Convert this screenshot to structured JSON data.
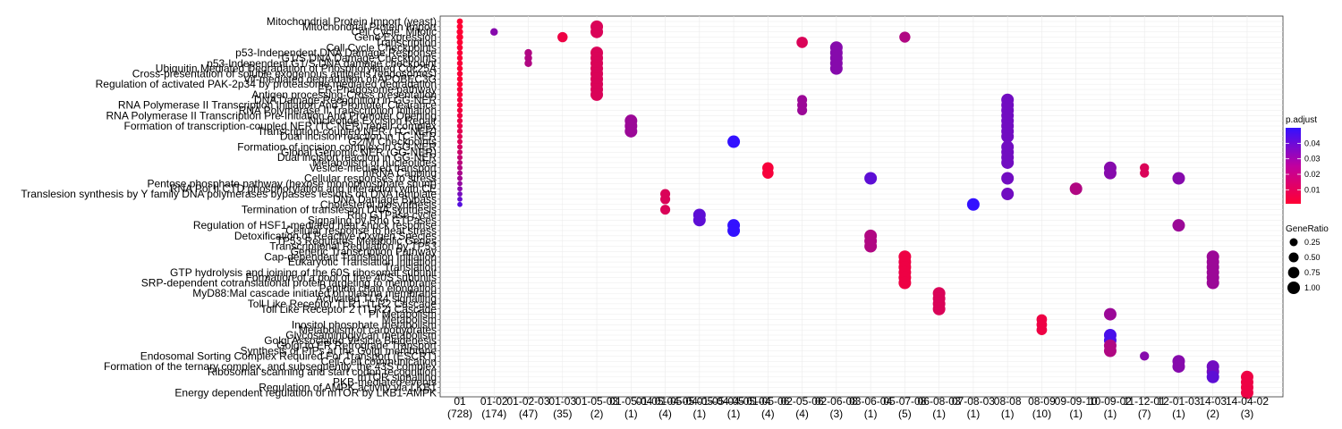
{
  "chart_data": {
    "type": "scatter",
    "title": "",
    "xlabel": "",
    "ylabel": "",
    "grid": true,
    "legend_position": "right",
    "x_categories": [
      {
        "label": "01",
        "count": "(728)"
      },
      {
        "label": "01-02",
        "count": "(174)"
      },
      {
        "label": "01-02-03",
        "count": "(47)"
      },
      {
        "label": "01-03",
        "count": "(35)"
      },
      {
        "label": "01-05-03",
        "count": "(2)"
      },
      {
        "label": "01-05-04",
        "count": "(1)"
      },
      {
        "label": "01-05-04-05",
        "count": "(4)"
      },
      {
        "label": "01-05-04-05-04-05",
        "count": "(1)"
      },
      {
        "label": "01-05-04-05-04",
        "count": "(1)"
      },
      {
        "label": "01-05-06",
        "count": "(4)"
      },
      {
        "label": "02-05-06",
        "count": "(4)"
      },
      {
        "label": "02-06-08",
        "count": "(3)"
      },
      {
        "label": "03-06-04",
        "count": "(1)"
      },
      {
        "label": "05-07-08",
        "count": "(5)"
      },
      {
        "label": "06-08-03",
        "count": "(1)"
      },
      {
        "label": "07-08-03",
        "count": "(1)"
      },
      {
        "label": "08-08",
        "count": "(1)"
      },
      {
        "label": "08-09",
        "count": "(10)"
      },
      {
        "label": "09-09-10",
        "count": "(1)"
      },
      {
        "label": "10-09-02",
        "count": "(1)"
      },
      {
        "label": "11-12-01",
        "count": "(7)"
      },
      {
        "label": "12-01-03",
        "count": "(1)"
      },
      {
        "label": "14-03",
        "count": "(2)"
      },
      {
        "label": "14-04-02",
        "count": "(3)"
      }
    ],
    "y_terms": [
      "Mitochondrial Protein Import (yeast)",
      "Mitochondrial Protein Import",
      "Cell Cycle, Mitotic",
      "Gene Expression",
      "Transcription",
      "Cell Cycle Checkpoints",
      "p53-Independent DNA Damage Response",
      "G1/S DNA Damage Checkpoints",
      "p53-Independent G1/S DNA damage checkpoint",
      "Ubiquitin Mediated Degradation of Phosphorylated Cdc25A",
      "Cross-presentation of soluble exogenous antigens (endosomes)",
      "Vif-mediated degradation of APOBEC3G",
      "Regulation of activated PAK-2p34 by proteasome mediated degradation",
      "ER-Phagosome pathway",
      "Antigen processing-Cross presentation",
      "DNA Damage Recognition in GG-NER",
      "RNA Polymerase II Transcription Initiation And Promoter Clearance",
      "RNA Polymerase II Transcription Initiation",
      "RNA Polymerase II Transcription Pre-Initiation And Promoter Opening",
      "Nucleotide Excision Repair",
      "Formation of transcription-coupled NER (TC-NER) repair complex",
      "Transcription-coupled NER (TC-NER)",
      "Dual incision reaction in TC-NER",
      "G2/M Checkpoints",
      "Formation of incision complex in GG-NER",
      "Global Genomic NER (GG-NER)",
      "Dual incision reaction in GG-NER",
      "Metabolism of nucleotides",
      "Vesicle-mediated transport",
      "mRNA Capping",
      "Cellular responses to stress",
      "Pentose phosphate pathway (hexose monophosphate shunt)",
      "RNA Pol II CTD phosphorylation and interaction with CE",
      "Translesion synthesis by Y family DNA polymerases bypasses lesions on DNA template",
      "DNA Damage Bypass",
      "Cholesterol biosynthesis",
      "Termination of translesion DNA synthesis",
      "Rho GTPase cycle",
      "Signaling by Rho GTPases",
      "Regulation of HSF1-mediated heat shock response",
      "Cellular response to heat stress",
      "Detoxification of Reactive Oxygen Species",
      "TP53 Regulates Metabolic Genes",
      "Transcriptional Regulation by TP53",
      "Generic Transcription Pathway",
      "Cap-dependent Translation Initiation",
      "Eukaryotic Translation Initiation",
      "Translation",
      "GTP hydrolysis and joining of the 60S ribosomal subunit",
      "Formation of a pool of free 40S subunits",
      "SRP-dependent cotranslational protein targeting to membrane",
      "Peptide chain elongation",
      "MyD88:Mal cascade initiated on plasma membrane",
      "Activated TLR4 signalling",
      "Toll Like Receptor TLR1:TLR2 Cascade",
      "Toll Like Receptor 2 (TLR2) Cascade",
      "PI Metabolism",
      "Metabolism",
      "Inositol phosphate metabolism",
      "Metabolism of carbohydrates",
      "Glycosaminoglycan metabolism",
      "Golgi Associated Vesicle Biogenesis",
      "Golgi to ER Retrograde Transport",
      "Synthesis of PIPs at the Golgi membrane",
      "Endosomal Sorting Complex Required For Transport (ESCRT)",
      "Cell-Cell communication",
      "Formation of the ternary complex, and subsequently, the 43S complex",
      "Ribosomal scanning and start codon recognition",
      "mTOR signalling",
      "PKB-mediated events",
      "Regulation of AMPK activity via LKB1",
      "Energy dependent regulation of mTOR by LKB1-AMPK"
    ],
    "points": [
      {
        "x": 0,
        "y": 0,
        "ratio": 0.08,
        "p": 0.001
      },
      {
        "x": 0,
        "y": 1,
        "ratio": 0.08,
        "p": 0.001
      },
      {
        "x": 0,
        "y": 2,
        "ratio": 0.1,
        "p": 0.001
      },
      {
        "x": 0,
        "y": 3,
        "ratio": 0.12,
        "p": 0.001
      },
      {
        "x": 0,
        "y": 4,
        "ratio": 0.08,
        "p": 0.001
      },
      {
        "x": 0,
        "y": 5,
        "ratio": 0.07,
        "p": 0.002
      },
      {
        "x": 0,
        "y": 6,
        "ratio": 0.06,
        "p": 0.002
      },
      {
        "x": 0,
        "y": 7,
        "ratio": 0.06,
        "p": 0.002
      },
      {
        "x": 0,
        "y": 8,
        "ratio": 0.06,
        "p": 0.002
      },
      {
        "x": 0,
        "y": 9,
        "ratio": 0.06,
        "p": 0.002
      },
      {
        "x": 0,
        "y": 10,
        "ratio": 0.06,
        "p": 0.002
      },
      {
        "x": 0,
        "y": 11,
        "ratio": 0.06,
        "p": 0.002
      },
      {
        "x": 0,
        "y": 12,
        "ratio": 0.06,
        "p": 0.002
      },
      {
        "x": 0,
        "y": 13,
        "ratio": 0.06,
        "p": 0.003
      },
      {
        "x": 0,
        "y": 14,
        "ratio": 0.06,
        "p": 0.003
      },
      {
        "x": 0,
        "y": 15,
        "ratio": 0.05,
        "p": 0.004
      },
      {
        "x": 0,
        "y": 16,
        "ratio": 0.05,
        "p": 0.004
      },
      {
        "x": 0,
        "y": 17,
        "ratio": 0.05,
        "p": 0.004
      },
      {
        "x": 0,
        "y": 18,
        "ratio": 0.05,
        "p": 0.005
      },
      {
        "x": 0,
        "y": 19,
        "ratio": 0.05,
        "p": 0.006
      },
      {
        "x": 0,
        "y": 20,
        "ratio": 0.05,
        "p": 0.007
      },
      {
        "x": 0,
        "y": 21,
        "ratio": 0.05,
        "p": 0.008
      },
      {
        "x": 0,
        "y": 22,
        "ratio": 0.04,
        "p": 0.009
      },
      {
        "x": 0,
        "y": 23,
        "ratio": 0.04,
        "p": 0.01
      },
      {
        "x": 0,
        "y": 24,
        "ratio": 0.04,
        "p": 0.012
      },
      {
        "x": 0,
        "y": 25,
        "ratio": 0.04,
        "p": 0.014
      },
      {
        "x": 0,
        "y": 26,
        "ratio": 0.04,
        "p": 0.016
      },
      {
        "x": 0,
        "y": 27,
        "ratio": 0.04,
        "p": 0.018
      },
      {
        "x": 0,
        "y": 28,
        "ratio": 0.04,
        "p": 0.02
      },
      {
        "x": 0,
        "y": 29,
        "ratio": 0.04,
        "p": 0.022
      },
      {
        "x": 0,
        "y": 30,
        "ratio": 0.04,
        "p": 0.024
      },
      {
        "x": 0,
        "y": 31,
        "ratio": 0.03,
        "p": 0.027
      },
      {
        "x": 0,
        "y": 32,
        "ratio": 0.03,
        "p": 0.03
      },
      {
        "x": 0,
        "y": 33,
        "ratio": 0.03,
        "p": 0.034
      },
      {
        "x": 0,
        "y": 34,
        "ratio": 0.03,
        "p": 0.038
      },
      {
        "x": 0,
        "y": 35,
        "ratio": 0.03,
        "p": 0.042
      },
      {
        "x": 1,
        "y": 2,
        "ratio": 0.2,
        "p": 0.03
      },
      {
        "x": 2,
        "y": 6,
        "ratio": 0.2,
        "p": 0.02
      },
      {
        "x": 2,
        "y": 7,
        "ratio": 0.2,
        "p": 0.02
      },
      {
        "x": 2,
        "y": 8,
        "ratio": 0.2,
        "p": 0.02
      },
      {
        "x": 3,
        "y": 3,
        "ratio": 0.55,
        "p": 0.005
      },
      {
        "x": 4,
        "y": 1,
        "ratio": 1.0,
        "p": 0.01
      },
      {
        "x": 4,
        "y": 2,
        "ratio": 1.0,
        "p": 0.01
      },
      {
        "x": 4,
        "y": 6,
        "ratio": 1.0,
        "p": 0.01
      },
      {
        "x": 4,
        "y": 7,
        "ratio": 1.0,
        "p": 0.01
      },
      {
        "x": 4,
        "y": 8,
        "ratio": 1.0,
        "p": 0.01
      },
      {
        "x": 4,
        "y": 9,
        "ratio": 1.0,
        "p": 0.01
      },
      {
        "x": 4,
        "y": 10,
        "ratio": 1.0,
        "p": 0.01
      },
      {
        "x": 4,
        "y": 11,
        "ratio": 1.0,
        "p": 0.01
      },
      {
        "x": 4,
        "y": 12,
        "ratio": 1.0,
        "p": 0.01
      },
      {
        "x": 4,
        "y": 13,
        "ratio": 1.0,
        "p": 0.01
      },
      {
        "x": 4,
        "y": 14,
        "ratio": 1.0,
        "p": 0.01
      },
      {
        "x": 5,
        "y": 19,
        "ratio": 1.0,
        "p": 0.025
      },
      {
        "x": 5,
        "y": 20,
        "ratio": 1.0,
        "p": 0.025
      },
      {
        "x": 5,
        "y": 21,
        "ratio": 1.0,
        "p": 0.025
      },
      {
        "x": 6,
        "y": 33,
        "ratio": 0.5,
        "p": 0.01
      },
      {
        "x": 6,
        "y": 34,
        "ratio": 0.5,
        "p": 0.01
      },
      {
        "x": 6,
        "y": 36,
        "ratio": 0.5,
        "p": 0.01
      },
      {
        "x": 7,
        "y": 37,
        "ratio": 1.0,
        "p": 0.04
      },
      {
        "x": 7,
        "y": 38,
        "ratio": 1.0,
        "p": 0.04
      },
      {
        "x": 8,
        "y": 23,
        "ratio": 1.0,
        "p": 0.05
      },
      {
        "x": 8,
        "y": 39,
        "ratio": 1.0,
        "p": 0.05
      },
      {
        "x": 8,
        "y": 40,
        "ratio": 1.0,
        "p": 0.05
      },
      {
        "x": 9,
        "y": 28,
        "ratio": 0.75,
        "p": 0.003
      },
      {
        "x": 9,
        "y": 29,
        "ratio": 0.75,
        "p": 0.003
      },
      {
        "x": 10,
        "y": 4,
        "ratio": 0.75,
        "p": 0.01
      },
      {
        "x": 10,
        "y": 15,
        "ratio": 0.5,
        "p": 0.025
      },
      {
        "x": 10,
        "y": 16,
        "ratio": 0.5,
        "p": 0.025
      },
      {
        "x": 10,
        "y": 17,
        "ratio": 0.5,
        "p": 0.025
      },
      {
        "x": 11,
        "y": 5,
        "ratio": 1.0,
        "p": 0.03
      },
      {
        "x": 11,
        "y": 6,
        "ratio": 1.0,
        "p": 0.03
      },
      {
        "x": 11,
        "y": 7,
        "ratio": 1.0,
        "p": 0.03
      },
      {
        "x": 11,
        "y": 8,
        "ratio": 1.0,
        "p": 0.03
      },
      {
        "x": 11,
        "y": 9,
        "ratio": 1.0,
        "p": 0.03
      },
      {
        "x": 12,
        "y": 30,
        "ratio": 1.0,
        "p": 0.04
      },
      {
        "x": 12,
        "y": 41,
        "ratio": 1.0,
        "p": 0.02
      },
      {
        "x": 12,
        "y": 42,
        "ratio": 1.0,
        "p": 0.02
      },
      {
        "x": 12,
        "y": 43,
        "ratio": 1.0,
        "p": 0.02
      },
      {
        "x": 13,
        "y": 3,
        "ratio": 0.7,
        "p": 0.02
      },
      {
        "x": 13,
        "y": 45,
        "ratio": 1.0,
        "p": 0.005
      },
      {
        "x": 13,
        "y": 46,
        "ratio": 1.0,
        "p": 0.005
      },
      {
        "x": 13,
        "y": 47,
        "ratio": 1.0,
        "p": 0.005
      },
      {
        "x": 13,
        "y": 48,
        "ratio": 1.0,
        "p": 0.005
      },
      {
        "x": 13,
        "y": 49,
        "ratio": 1.0,
        "p": 0.005
      },
      {
        "x": 13,
        "y": 50,
        "ratio": 1.0,
        "p": 0.005
      },
      {
        "x": 14,
        "y": 52,
        "ratio": 1.0,
        "p": 0.01
      },
      {
        "x": 14,
        "y": 53,
        "ratio": 1.0,
        "p": 0.01
      },
      {
        "x": 14,
        "y": 54,
        "ratio": 1.0,
        "p": 0.01
      },
      {
        "x": 14,
        "y": 55,
        "ratio": 1.0,
        "p": 0.01
      },
      {
        "x": 15,
        "y": 35,
        "ratio": 1.0,
        "p": 0.05
      },
      {
        "x": 16,
        "y": 15,
        "ratio": 1.0,
        "p": 0.035
      },
      {
        "x": 16,
        "y": 16,
        "ratio": 1.0,
        "p": 0.035
      },
      {
        "x": 16,
        "y": 17,
        "ratio": 1.0,
        "p": 0.035
      },
      {
        "x": 16,
        "y": 18,
        "ratio": 1.0,
        "p": 0.035
      },
      {
        "x": 16,
        "y": 19,
        "ratio": 1.0,
        "p": 0.035
      },
      {
        "x": 16,
        "y": 20,
        "ratio": 1.0,
        "p": 0.035
      },
      {
        "x": 16,
        "y": 21,
        "ratio": 1.0,
        "p": 0.035
      },
      {
        "x": 16,
        "y": 22,
        "ratio": 1.0,
        "p": 0.035
      },
      {
        "x": 16,
        "y": 24,
        "ratio": 1.0,
        "p": 0.035
      },
      {
        "x": 16,
        "y": 25,
        "ratio": 1.0,
        "p": 0.035
      },
      {
        "x": 16,
        "y": 26,
        "ratio": 1.0,
        "p": 0.035
      },
      {
        "x": 16,
        "y": 27,
        "ratio": 1.0,
        "p": 0.035
      },
      {
        "x": 16,
        "y": 30,
        "ratio": 1.0,
        "p": 0.035
      },
      {
        "x": 16,
        "y": 33,
        "ratio": 1.0,
        "p": 0.035
      },
      {
        "x": 17,
        "y": 57,
        "ratio": 0.6,
        "p": 0.005
      },
      {
        "x": 17,
        "y": 58,
        "ratio": 0.6,
        "p": 0.005
      },
      {
        "x": 17,
        "y": 59,
        "ratio": 0.6,
        "p": 0.005
      },
      {
        "x": 18,
        "y": 32,
        "ratio": 1.0,
        "p": 0.02
      },
      {
        "x": 19,
        "y": 28,
        "ratio": 1.0,
        "p": 0.03
      },
      {
        "x": 19,
        "y": 29,
        "ratio": 1.0,
        "p": 0.03
      },
      {
        "x": 19,
        "y": 56,
        "ratio": 1.0,
        "p": 0.025
      },
      {
        "x": 19,
        "y": 60,
        "ratio": 1.0,
        "p": 0.045
      },
      {
        "x": 19,
        "y": 61,
        "ratio": 1.0,
        "p": 0.045
      },
      {
        "x": 19,
        "y": 62,
        "ratio": 1.0,
        "p": 0.02
      },
      {
        "x": 19,
        "y": 63,
        "ratio": 1.0,
        "p": 0.02
      },
      {
        "x": 20,
        "y": 28,
        "ratio": 0.4,
        "p": 0.01
      },
      {
        "x": 20,
        "y": 29,
        "ratio": 0.4,
        "p": 0.01
      },
      {
        "x": 20,
        "y": 64,
        "ratio": 0.4,
        "p": 0.03
      },
      {
        "x": 21,
        "y": 30,
        "ratio": 1.0,
        "p": 0.03
      },
      {
        "x": 21,
        "y": 39,
        "ratio": 1.0,
        "p": 0.025
      },
      {
        "x": 21,
        "y": 65,
        "ratio": 1.0,
        "p": 0.03
      },
      {
        "x": 21,
        "y": 66,
        "ratio": 1.0,
        "p": 0.03
      },
      {
        "x": 22,
        "y": 45,
        "ratio": 1.0,
        "p": 0.025
      },
      {
        "x": 22,
        "y": 46,
        "ratio": 1.0,
        "p": 0.025
      },
      {
        "x": 22,
        "y": 47,
        "ratio": 1.0,
        "p": 0.025
      },
      {
        "x": 22,
        "y": 48,
        "ratio": 1.0,
        "p": 0.025
      },
      {
        "x": 22,
        "y": 49,
        "ratio": 1.0,
        "p": 0.025
      },
      {
        "x": 22,
        "y": 50,
        "ratio": 1.0,
        "p": 0.025
      },
      {
        "x": 22,
        "y": 66,
        "ratio": 1.0,
        "p": 0.035
      },
      {
        "x": 22,
        "y": 67,
        "ratio": 1.0,
        "p": 0.035
      },
      {
        "x": 22,
        "y": 68,
        "ratio": 1.0,
        "p": 0.04
      },
      {
        "x": 23,
        "y": 68,
        "ratio": 1.0,
        "p": 0.005
      },
      {
        "x": 23,
        "y": 69,
        "ratio": 1.0,
        "p": 0.005
      },
      {
        "x": 23,
        "y": 70,
        "ratio": 1.0,
        "p": 0.005
      },
      {
        "x": 23,
        "y": 71,
        "ratio": 1.0,
        "p": 0.005
      }
    ],
    "color_legend": {
      "title": "p.adjust",
      "ticks": [
        0.04,
        0.03,
        0.02,
        0.01
      ],
      "range": [
        0.001,
        0.05
      ],
      "low_color": "#ff0033",
      "high_color": "#3311ff"
    },
    "size_legend": {
      "title": "GeneRatio",
      "values": [
        0.25,
        0.5,
        0.75,
        1.0
      ],
      "labels": [
        "0.25",
        "0.50",
        "0.75",
        "1.00"
      ]
    }
  }
}
